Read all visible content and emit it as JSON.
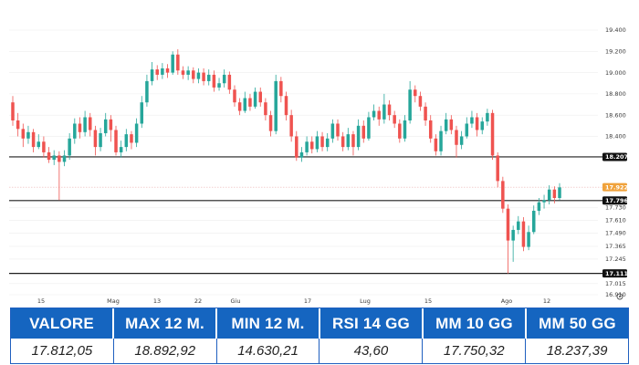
{
  "colors": {
    "up": "#26a69a",
    "down": "#ef5350",
    "level_line": "#1f1f1f",
    "header_bg": "#1565c0",
    "price_badge": "#f0a23b"
  },
  "chart_data": {
    "type": "candlestick",
    "title": "",
    "y_ticks": [
      "19.400",
      "19.200",
      "19.000",
      "18.800",
      "18.600",
      "18.400",
      "18.207",
      "17.922",
      "17.796",
      "17.730",
      "17.610",
      "17.490",
      "17.365",
      "17.245",
      "17.111",
      "17.015",
      "16.910"
    ],
    "x_ticks": [
      "15",
      "Mag",
      "13",
      "22",
      "Giu",
      "17",
      "Lug",
      "15",
      "Ago",
      "12"
    ],
    "ylim": [
      16.91,
      19.4
    ],
    "levels": [
      {
        "value": 18.207,
        "label": "18.207"
      },
      {
        "value": 17.796,
        "label": "17.796"
      },
      {
        "value": 17.111,
        "label": "17.111"
      }
    ],
    "last_price": {
      "value": 17.922,
      "label": "17.922"
    },
    "candles": [
      [
        18.72,
        18.55,
        18.78,
        18.5
      ],
      [
        18.55,
        18.47,
        18.62,
        18.4
      ],
      [
        18.47,
        18.38,
        18.52,
        18.3
      ],
      [
        18.38,
        18.44,
        18.5,
        18.33
      ],
      [
        18.44,
        18.3,
        18.47,
        18.25
      ],
      [
        18.3,
        18.35,
        18.42,
        18.28
      ],
      [
        18.35,
        18.25,
        18.4,
        18.2
      ],
      [
        18.25,
        18.18,
        18.3,
        18.15
      ],
      [
        18.18,
        18.22,
        18.27,
        18.13
      ],
      [
        18.22,
        18.16,
        18.26,
        17.8
      ],
      [
        18.16,
        18.22,
        18.27,
        18.12
      ],
      [
        18.22,
        18.38,
        18.43,
        18.18
      ],
      [
        18.38,
        18.52,
        18.57,
        18.33
      ],
      [
        18.52,
        18.44,
        18.58,
        18.38
      ],
      [
        18.44,
        18.58,
        18.64,
        18.4
      ],
      [
        18.58,
        18.46,
        18.62,
        18.4
      ],
      [
        18.46,
        18.3,
        18.5,
        18.22
      ],
      [
        18.3,
        18.43,
        18.48,
        18.26
      ],
      [
        18.43,
        18.56,
        18.62,
        18.4
      ],
      [
        18.56,
        18.46,
        18.6,
        18.35
      ],
      [
        18.46,
        18.25,
        18.5,
        18.22
      ],
      [
        18.25,
        18.3,
        18.36,
        18.2
      ],
      [
        18.3,
        18.42,
        18.47,
        18.26
      ],
      [
        18.42,
        18.34,
        18.45,
        18.28
      ],
      [
        18.34,
        18.52,
        18.57,
        18.3
      ],
      [
        18.52,
        18.72,
        18.78,
        18.48
      ],
      [
        18.72,
        18.92,
        18.98,
        18.68
      ],
      [
        18.92,
        19.03,
        19.1,
        18.88
      ],
      [
        19.03,
        18.98,
        19.07,
        18.93
      ],
      [
        18.98,
        19.04,
        19.09,
        18.94
      ],
      [
        19.04,
        19.0,
        19.08,
        18.95
      ],
      [
        19.0,
        19.17,
        19.2,
        18.98
      ],
      [
        19.17,
        19.02,
        19.22,
        18.98
      ],
      [
        19.02,
        18.98,
        19.06,
        18.94
      ],
      [
        18.98,
        19.02,
        19.06,
        18.93
      ],
      [
        19.02,
        18.94,
        19.05,
        18.9
      ],
      [
        18.94,
        19.0,
        19.04,
        18.9
      ],
      [
        19.0,
        18.92,
        19.04,
        18.88
      ],
      [
        18.92,
        18.98,
        19.03,
        18.88
      ],
      [
        18.98,
        18.86,
        19.02,
        18.82
      ],
      [
        18.86,
        18.9,
        18.95,
        18.83
      ],
      [
        18.9,
        18.98,
        19.03,
        18.86
      ],
      [
        18.98,
        18.84,
        19.01,
        18.8
      ],
      [
        18.84,
        18.72,
        18.88,
        18.68
      ],
      [
        18.72,
        18.64,
        18.76,
        18.6
      ],
      [
        18.64,
        18.76,
        18.82,
        18.62
      ],
      [
        18.76,
        18.68,
        18.8,
        18.64
      ],
      [
        18.68,
        18.82,
        18.86,
        18.66
      ],
      [
        18.82,
        18.72,
        18.86,
        18.68
      ],
      [
        18.72,
        18.6,
        18.76,
        18.55
      ],
      [
        18.6,
        18.45,
        18.64,
        18.4
      ],
      [
        18.45,
        18.92,
        18.98,
        18.42
      ],
      [
        18.92,
        18.78,
        18.96,
        18.72
      ],
      [
        18.78,
        18.6,
        18.82,
        18.55
      ],
      [
        18.6,
        18.4,
        18.65,
        18.35
      ],
      [
        18.4,
        18.2,
        18.45,
        18.17
      ],
      [
        18.2,
        18.25,
        18.3,
        18.16
      ],
      [
        18.25,
        18.35,
        18.4,
        18.22
      ],
      [
        18.35,
        18.28,
        18.4,
        18.24
      ],
      [
        18.28,
        18.4,
        18.45,
        18.25
      ],
      [
        18.4,
        18.3,
        18.44,
        18.26
      ],
      [
        18.3,
        18.38,
        18.43,
        18.26
      ],
      [
        18.38,
        18.52,
        18.56,
        18.34
      ],
      [
        18.52,
        18.4,
        18.56,
        18.36
      ],
      [
        18.4,
        18.3,
        18.44,
        18.26
      ],
      [
        18.3,
        18.42,
        18.48,
        18.27
      ],
      [
        18.42,
        18.3,
        18.45,
        18.22
      ],
      [
        18.3,
        18.5,
        18.56,
        18.27
      ],
      [
        18.5,
        18.38,
        18.55,
        18.34
      ],
      [
        18.38,
        18.58,
        18.63,
        18.36
      ],
      [
        18.58,
        18.64,
        18.7,
        18.55
      ],
      [
        18.64,
        18.56,
        18.68,
        18.5
      ],
      [
        18.56,
        18.7,
        18.8,
        18.52
      ],
      [
        18.7,
        18.6,
        18.74,
        18.55
      ],
      [
        18.6,
        18.52,
        18.64,
        18.48
      ],
      [
        18.52,
        18.38,
        18.56,
        18.34
      ],
      [
        18.38,
        18.55,
        18.6,
        18.35
      ],
      [
        18.55,
        18.84,
        18.92,
        18.52
      ],
      [
        18.84,
        18.78,
        18.88,
        18.72
      ],
      [
        18.78,
        18.68,
        18.82,
        18.64
      ],
      [
        18.68,
        18.55,
        18.72,
        18.5
      ],
      [
        18.55,
        18.38,
        18.6,
        18.34
      ],
      [
        18.38,
        18.26,
        18.42,
        18.22
      ],
      [
        18.26,
        18.45,
        18.5,
        18.22
      ],
      [
        18.45,
        18.56,
        18.62,
        18.42
      ],
      [
        18.56,
        18.46,
        18.6,
        18.42
      ],
      [
        18.46,
        18.32,
        18.5,
        18.2
      ],
      [
        18.32,
        18.4,
        18.45,
        18.28
      ],
      [
        18.4,
        18.52,
        18.58,
        18.38
      ],
      [
        18.52,
        18.58,
        18.64,
        18.48
      ],
      [
        18.58,
        18.46,
        18.62,
        18.4
      ],
      [
        18.46,
        18.54,
        18.58,
        18.42
      ],
      [
        18.54,
        18.62,
        18.66,
        18.5
      ],
      [
        18.62,
        18.22,
        18.65,
        18.18
      ],
      [
        18.22,
        17.98,
        18.25,
        17.92
      ],
      [
        17.98,
        17.72,
        18.02,
        17.68
      ],
      [
        17.72,
        17.42,
        17.76,
        17.11
      ],
      [
        17.42,
        17.52,
        17.56,
        17.22
      ],
      [
        17.52,
        17.6,
        17.65,
        17.48
      ],
      [
        17.6,
        17.36,
        17.64,
        17.32
      ],
      [
        17.36,
        17.5,
        17.56,
        17.33
      ],
      [
        17.5,
        17.7,
        17.75,
        17.48
      ],
      [
        17.7,
        17.78,
        17.82,
        17.66
      ],
      [
        17.78,
        17.8,
        17.85,
        17.72
      ],
      [
        17.8,
        17.9,
        17.94,
        17.76
      ],
      [
        17.9,
        17.82,
        17.93,
        17.77
      ],
      [
        17.82,
        17.92,
        17.96,
        17.8
      ]
    ]
  },
  "stats": {
    "headers": [
      "VALORE",
      "MAX 12 M.",
      "MIN 12 M.",
      "RSI 14 GG",
      "MM 10 GG",
      "MM 50 GG"
    ],
    "values": [
      "17.812,05",
      "18.892,92",
      "14.630,21",
      "43,60",
      "17.750,32",
      "18.237,39"
    ]
  }
}
